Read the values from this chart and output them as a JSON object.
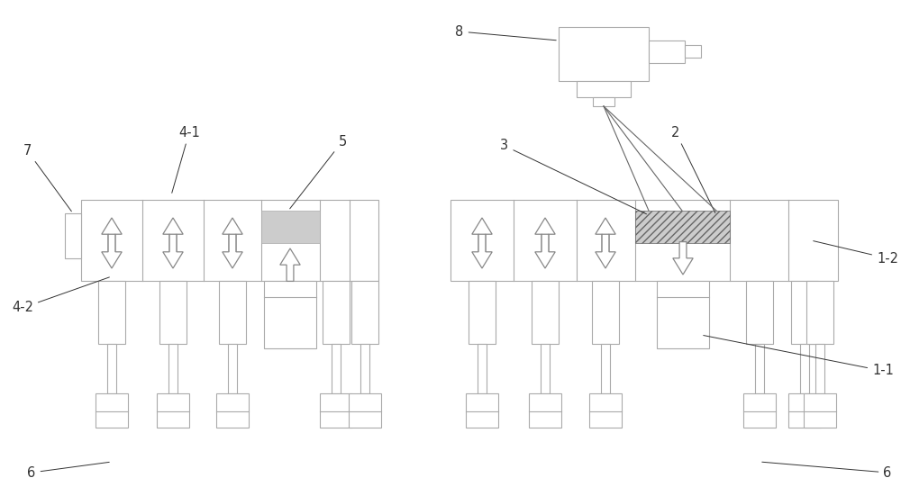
{
  "bg_color": "#ffffff",
  "lc": "#aaaaaa",
  "dc": "#666666",
  "lbl": "#333333",
  "fill_gray": "#cccccc",
  "fill_hatch": "#bbbbbb"
}
